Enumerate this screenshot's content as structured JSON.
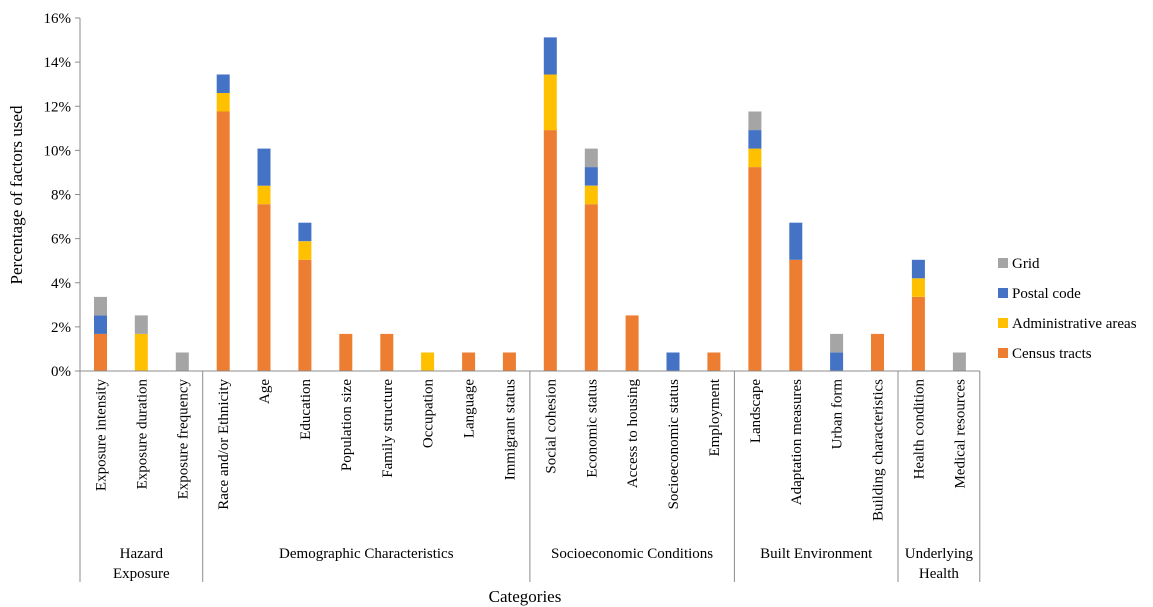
{
  "chart_data": {
    "type": "bar",
    "stacked": true,
    "xlabel": "Categories",
    "ylabel": "Percentage of factors used",
    "ylim": [
      0,
      16
    ],
    "yticks": [
      "0%",
      "2%",
      "4%",
      "6%",
      "8%",
      "10%",
      "12%",
      "14%",
      "16%"
    ],
    "grid": false,
    "legend_position": "right",
    "categories": [
      "Exposure intensity",
      "Exposure duration",
      "Exposure frequency",
      "Race and/or Ethnicity",
      "Age",
      "Education",
      "Population size",
      "Family structure",
      "Occupation",
      "Language",
      "Immigrant status",
      "Social cohesion",
      "Economic status",
      "Access to housing",
      "Socioeconomic status",
      "Employment",
      "Landscape",
      "Adaptation measures",
      "Urban form",
      "Building characteristics",
      "Health condition",
      "Medical resources"
    ],
    "groups": [
      {
        "label": "Hazard Exposure",
        "count": 3
      },
      {
        "label": "Demographic Characteristics",
        "count": 8
      },
      {
        "label": "Socioeconomic Conditions",
        "count": 5
      },
      {
        "label": "Built Environment",
        "count": 4
      },
      {
        "label": "Underlying Health",
        "count": 2
      }
    ],
    "series": [
      {
        "name": "Census tracts",
        "color": "#ED7D31",
        "values": [
          1.68,
          0,
          0,
          11.76,
          7.56,
          5.04,
          1.68,
          1.68,
          0,
          0.84,
          0.84,
          10.92,
          7.56,
          2.52,
          0,
          0.84,
          9.24,
          5.04,
          0,
          1.68,
          3.36,
          0
        ]
      },
      {
        "name": "Administrative areas",
        "color": "#FFC000",
        "values": [
          0,
          1.68,
          0,
          0.84,
          0.84,
          0.84,
          0,
          0,
          0.84,
          0,
          0,
          2.52,
          0.84,
          0,
          0,
          0,
          0.84,
          0,
          0,
          0,
          0.84,
          0
        ]
      },
      {
        "name": "Postal code",
        "color": "#4472C4",
        "values": [
          0.84,
          0,
          0,
          0.84,
          1.68,
          0.84,
          0,
          0,
          0,
          0,
          0,
          1.68,
          0.84,
          0,
          0.84,
          0,
          0.84,
          1.68,
          0.84,
          0,
          0.84,
          0
        ]
      },
      {
        "name": "Grid",
        "color": "#A5A5A5",
        "values": [
          0.84,
          0.84,
          0.84,
          0,
          0,
          0,
          0,
          0,
          0,
          0,
          0,
          0,
          0.84,
          0,
          0,
          0,
          0.84,
          0,
          0.84,
          0,
          0,
          0.84
        ]
      }
    ]
  }
}
